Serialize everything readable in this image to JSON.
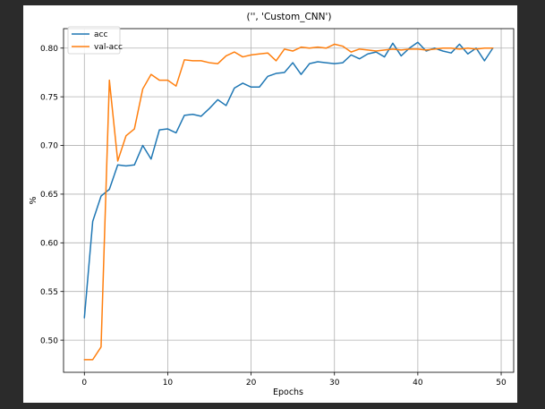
{
  "chart_data": {
    "type": "line",
    "title": "('', 'Custom_CNN')",
    "xlabel": "Epochs",
    "ylabel": "%",
    "xlim": [
      -2.5,
      51.5
    ],
    "ylim": [
      0.467,
      0.82
    ],
    "xticks": [
      0,
      10,
      20,
      30,
      40,
      50
    ],
    "yticks": [
      0.5,
      0.55,
      0.6,
      0.65,
      0.7,
      0.75,
      0.8
    ],
    "grid": true,
    "legend_position": "top-left",
    "x": [
      0,
      1,
      2,
      3,
      4,
      5,
      6,
      7,
      8,
      9,
      10,
      11,
      12,
      13,
      14,
      15,
      16,
      17,
      18,
      19,
      20,
      21,
      22,
      23,
      24,
      25,
      26,
      27,
      28,
      29,
      30,
      31,
      32,
      33,
      34,
      35,
      36,
      37,
      38,
      39,
      40,
      41,
      42,
      43,
      44,
      45,
      46,
      47,
      48,
      49
    ],
    "series": [
      {
        "name": "acc",
        "color": "#1f77b4",
        "values": [
          0.523,
          0.622,
          0.648,
          0.655,
          0.68,
          0.679,
          0.68,
          0.7,
          0.686,
          0.716,
          0.717,
          0.713,
          0.731,
          0.732,
          0.73,
          0.738,
          0.747,
          0.741,
          0.759,
          0.764,
          0.76,
          0.76,
          0.771,
          0.774,
          0.775,
          0.785,
          0.773,
          0.784,
          0.786,
          0.785,
          0.784,
          0.785,
          0.793,
          0.789,
          0.794,
          0.796,
          0.791,
          0.805,
          0.792,
          0.8,
          0.806,
          0.797,
          0.8,
          0.797,
          0.795,
          0.804,
          0.794,
          0.8,
          0.787,
          0.8
        ]
      },
      {
        "name": "val-acc",
        "color": "#ff7f0e",
        "values": [
          0.48,
          0.48,
          0.493,
          0.767,
          0.684,
          0.71,
          0.717,
          0.758,
          0.773,
          0.767,
          0.767,
          0.761,
          0.788,
          0.787,
          0.787,
          0.785,
          0.784,
          0.792,
          0.796,
          0.791,
          0.793,
          0.794,
          0.795,
          0.787,
          0.799,
          0.797,
          0.801,
          0.8,
          0.801,
          0.8,
          0.804,
          0.802,
          0.796,
          0.799,
          0.798,
          0.797,
          0.798,
          0.799,
          0.798,
          0.799,
          0.799,
          0.798,
          0.799,
          0.8,
          0.8,
          0.799,
          0.8,
          0.799,
          0.8,
          0.8
        ]
      }
    ]
  }
}
